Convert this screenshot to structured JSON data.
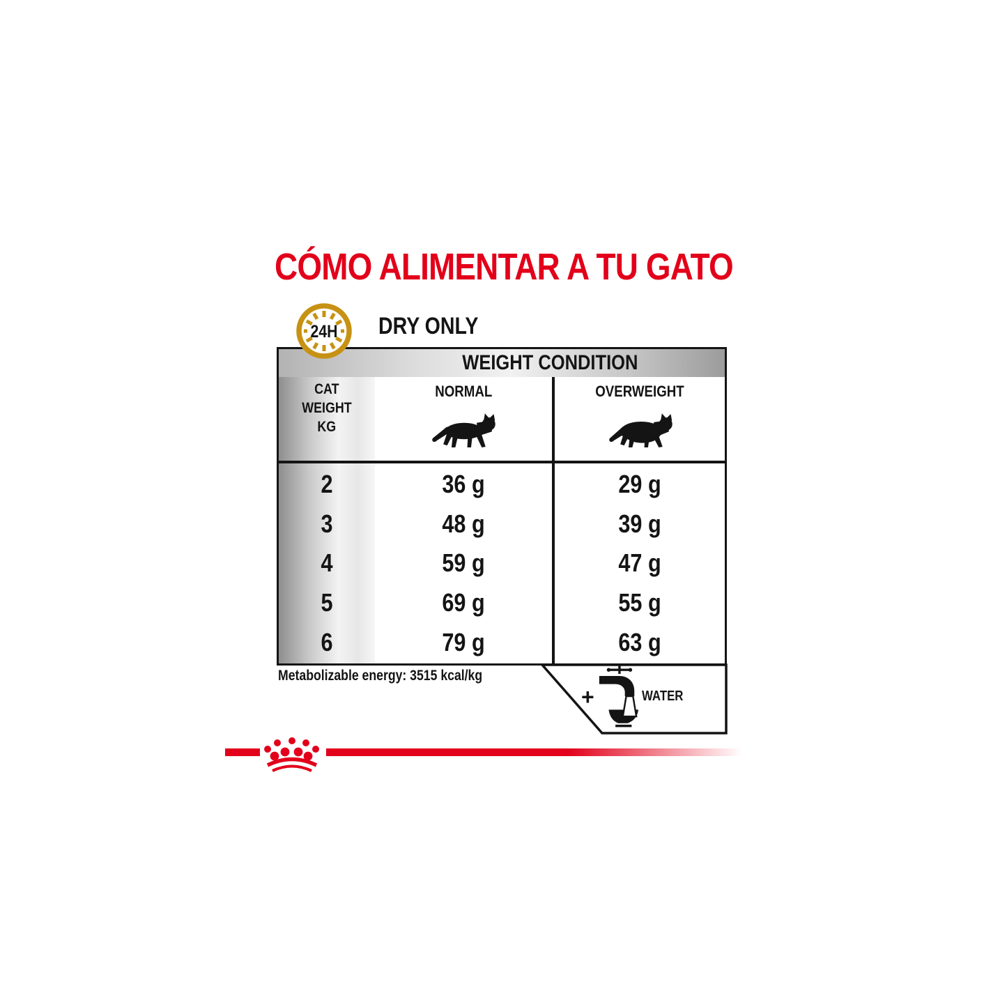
{
  "title": {
    "text": "CÓMO ALIMENTAR A TU GATO"
  },
  "feeding": {
    "clock_label": "24H",
    "mode_label": "DRY ONLY"
  },
  "table": {
    "header": "WEIGHT CONDITION",
    "row_header": {
      "line1": "CAT",
      "line2": "WEIGHT",
      "line3": "KG"
    },
    "columns": [
      {
        "label": "NORMAL"
      },
      {
        "label": "OVERWEIGHT"
      }
    ],
    "rows": [
      {
        "kg": "2",
        "normal": "36 g",
        "overweight": "29 g"
      },
      {
        "kg": "3",
        "normal": "48 g",
        "overweight": "39 g"
      },
      {
        "kg": "4",
        "normal": "59 g",
        "overweight": "47 g"
      },
      {
        "kg": "5",
        "normal": "69 g",
        "overweight": "55 g"
      },
      {
        "kg": "6",
        "normal": "79 g",
        "overweight": "63 g"
      }
    ]
  },
  "footnote": {
    "text": "Metabolizable energy: 3515 kcal/kg"
  },
  "water": {
    "plus": "+",
    "label": "WATER"
  },
  "icons": {
    "clock": "24h-clock-icon",
    "normal_cat": "normal-cat-icon",
    "overweight_cat": "overweight-cat-icon",
    "faucet": "water-faucet-bowl-icon",
    "crown": "royal-canin-crown-logo"
  },
  "colors": {
    "red": "#e2001a",
    "gold": "#c79214",
    "ink": "#141414"
  }
}
